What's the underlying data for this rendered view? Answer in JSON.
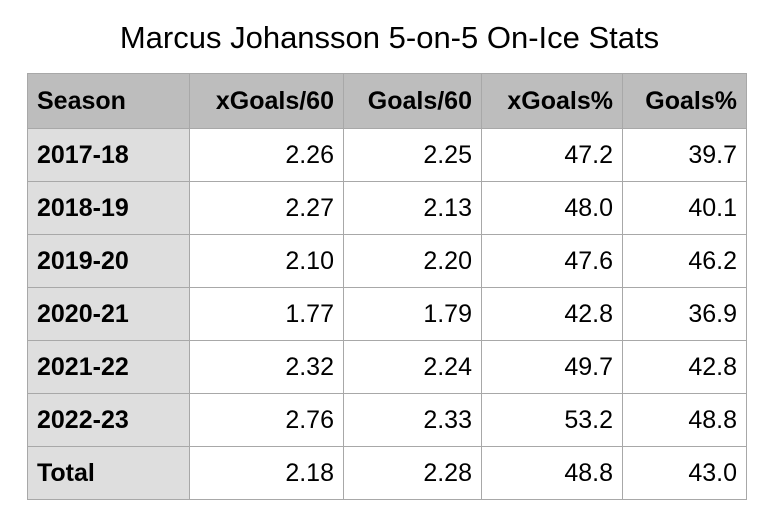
{
  "chart_data": {
    "type": "table",
    "title": "Marcus Johansson 5-on-5 On-Ice Stats",
    "columns": [
      "Season",
      "xGoals/60",
      "Goals/60",
      "xGoals%",
      "Goals%"
    ],
    "rows": [
      [
        "2017-18",
        "2.26",
        "2.25",
        "47.2",
        "39.7"
      ],
      [
        "2018-19",
        "2.27",
        "2.13",
        "48.0",
        "40.1"
      ],
      [
        "2019-20",
        "2.10",
        "2.20",
        "47.6",
        "46.2"
      ],
      [
        "2020-21",
        "1.77",
        "1.79",
        "42.8",
        "36.9"
      ],
      [
        "2021-22",
        "2.32",
        "2.24",
        "49.7",
        "42.8"
      ],
      [
        "2022-23",
        "2.76",
        "2.33",
        "53.2",
        "48.8"
      ],
      [
        "Total",
        "2.18",
        "2.28",
        "48.8",
        "43.0"
      ]
    ],
    "colors": {
      "header_bg": "#bdbdbd",
      "row_label_bg": "#dedede",
      "cell_bg": "#ffffff",
      "border": "#a8a8a8"
    }
  }
}
